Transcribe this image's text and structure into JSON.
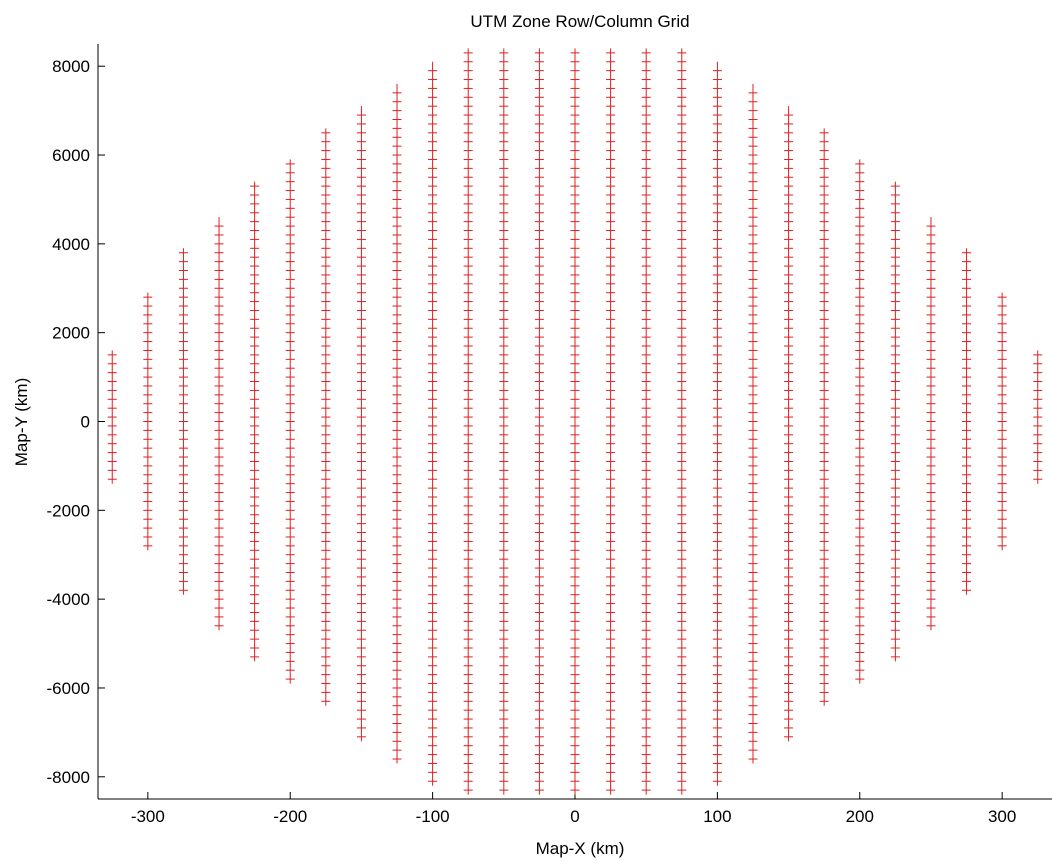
{
  "chart_data": {
    "type": "scatter",
    "title": "UTM Zone Row/Column Grid",
    "xlabel": "Map-X (km)",
    "ylabel": "Map-Y (km)",
    "xlim": [
      -335,
      335
    ],
    "ylim": [
      -8500,
      8500
    ],
    "grid": false,
    "marker": "+",
    "marker_color": "#dd2020",
    "x_ticks": [
      -300,
      -200,
      -100,
      0,
      100,
      200,
      300
    ],
    "x_tick_labels": [
      "-300",
      "-200",
      "-100",
      "0",
      "100",
      "200",
      "300"
    ],
    "y_ticks": [
      -8000,
      -6000,
      -4000,
      -2000,
      0,
      2000,
      4000,
      6000,
      8000
    ],
    "y_tick_labels": [
      "-8000",
      "-6000",
      "-4000",
      "-2000",
      "0",
      "2000",
      "4000",
      "6000",
      "8000"
    ],
    "y_step": 200,
    "columns": [
      {
        "x": -325,
        "ymin": -1300,
        "ymax": 1500
      },
      {
        "x": -300,
        "ymin": -2800,
        "ymax": 2800
      },
      {
        "x": -275,
        "ymin": -3800,
        "ymax": 3800
      },
      {
        "x": -250,
        "ymin": -4600,
        "ymax": 4500
      },
      {
        "x": -225,
        "ymin": -5300,
        "ymax": 5300
      },
      {
        "x": -200,
        "ymin": -5800,
        "ymax": 5800
      },
      {
        "x": -175,
        "ymin": -6300,
        "ymax": 6500
      },
      {
        "x": -150,
        "ymin": -7100,
        "ymax": 7000
      },
      {
        "x": -125,
        "ymin": -7600,
        "ymax": 7500
      },
      {
        "x": -100,
        "ymin": -8100,
        "ymax": 8000
      },
      {
        "x": -75,
        "ymin": -8300,
        "ymax": 8300
      },
      {
        "x": -50,
        "ymin": -8300,
        "ymax": 8300
      },
      {
        "x": -25,
        "ymin": -8300,
        "ymax": 8300
      },
      {
        "x": 0,
        "ymin": -8300,
        "ymax": 8300
      },
      {
        "x": 25,
        "ymin": -8300,
        "ymax": 8300
      },
      {
        "x": 50,
        "ymin": -8300,
        "ymax": 8300
      },
      {
        "x": 75,
        "ymin": -8300,
        "ymax": 8300
      },
      {
        "x": 100,
        "ymin": -8100,
        "ymax": 8000
      },
      {
        "x": 125,
        "ymin": -7600,
        "ymax": 7500
      },
      {
        "x": 150,
        "ymin": -7100,
        "ymax": 7000
      },
      {
        "x": 175,
        "ymin": -6300,
        "ymax": 6500
      },
      {
        "x": 200,
        "ymin": -5800,
        "ymax": 5800
      },
      {
        "x": 225,
        "ymin": -5300,
        "ymax": 5300
      },
      {
        "x": 250,
        "ymin": -4600,
        "ymax": 4500
      },
      {
        "x": 275,
        "ymin": -3800,
        "ymax": 3800
      },
      {
        "x": 300,
        "ymin": -2800,
        "ymax": 2800
      },
      {
        "x": 325,
        "ymin": -1300,
        "ymax": 1500
      }
    ]
  }
}
